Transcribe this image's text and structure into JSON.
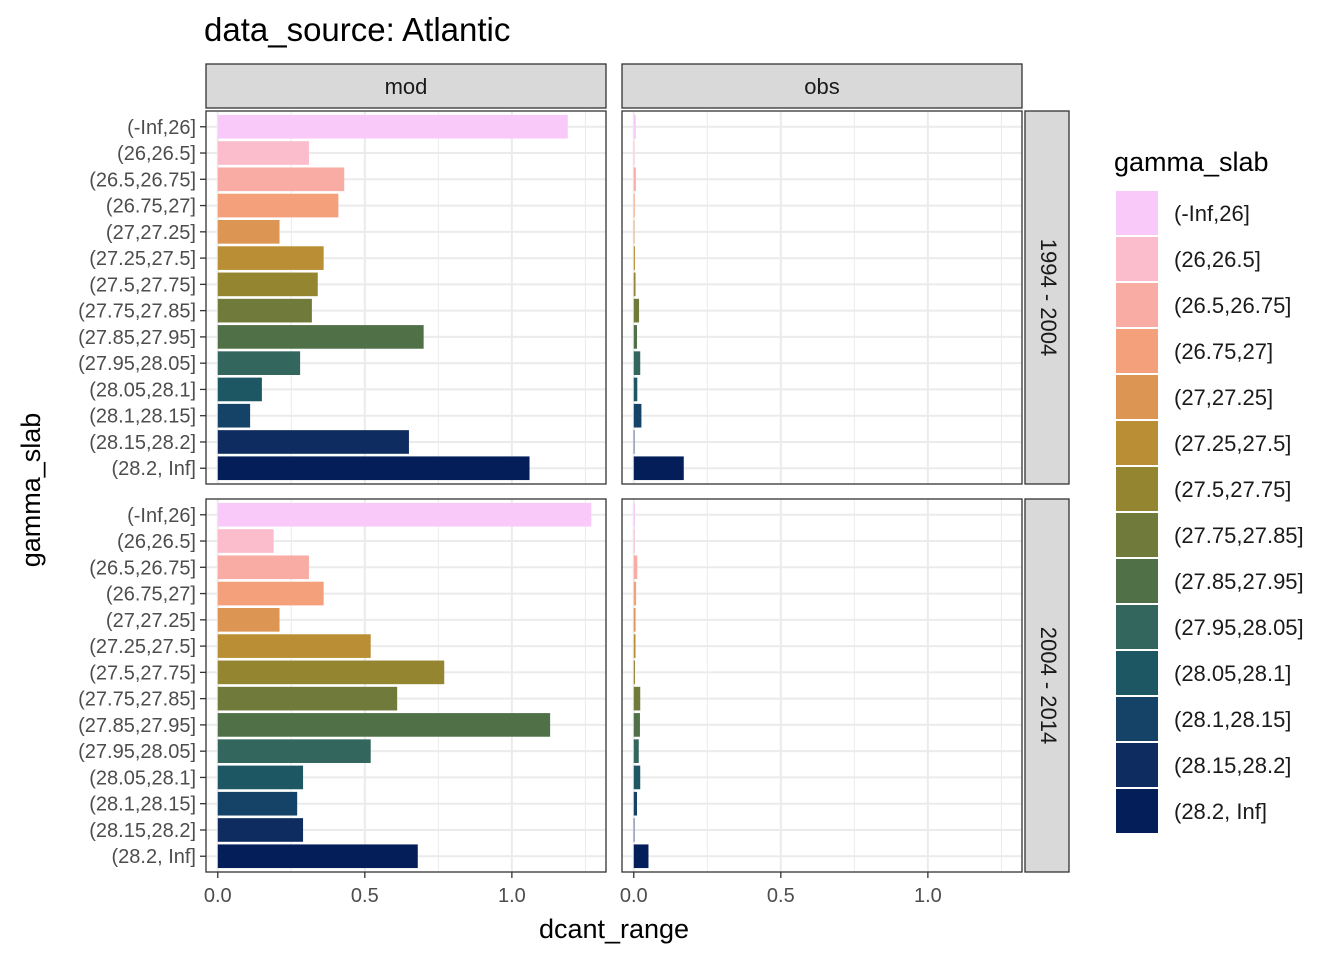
{
  "chart_data": {
    "type": "bar",
    "orientation": "horizontal",
    "title": "data_source: Atlantic",
    "xlabel": "dcant_range",
    "ylabel": "gamma_slab",
    "facet_cols": [
      "mod",
      "obs"
    ],
    "facet_rows": [
      "1994 - 2004",
      "2004 - 2014"
    ],
    "xlim": [
      -0.04,
      1.32
    ],
    "x_ticks": [
      0.0,
      0.5,
      1.0
    ],
    "x_tick_labels": [
      "0.0",
      "0.5",
      "1.0"
    ],
    "grid": true,
    "legend": {
      "title": "gamma_slab",
      "position": "right"
    },
    "categories": [
      "(-Inf,26]",
      "(26,26.5]",
      "(26.5,26.75]",
      "(26.75,27]",
      "(27,27.25]",
      "(27.25,27.5]",
      "(27.5,27.75]",
      "(27.75,27.85]",
      "(27.85,27.95]",
      "(27.95,28.05]",
      "(28.05,28.1]",
      "(28.1,28.15]",
      "(28.15,28.2]",
      "(28.2, Inf]"
    ],
    "colors": [
      "#F9C9F9",
      "#FBBCCB",
      "#F9ACA3",
      "#F3A07B",
      "#DC9553",
      "#BA8E35",
      "#948530",
      "#6F7A3B",
      "#507148",
      "#33665C",
      "#1D5764",
      "#154368",
      "#0F2C61",
      "#041E5A"
    ],
    "panels": [
      {
        "col": "mod",
        "row": "1994 - 2004",
        "values": [
          1.19,
          0.31,
          0.43,
          0.41,
          0.21,
          0.36,
          0.34,
          0.32,
          0.7,
          0.28,
          0.15,
          0.11,
          0.65,
          1.06
        ]
      },
      {
        "col": "obs",
        "row": "1994 - 2004",
        "values": [
          0.007,
          0.001,
          0.007,
          0.003,
          0.001,
          0.004,
          0.006,
          0.018,
          0.011,
          0.022,
          0.012,
          0.026,
          0.001,
          0.17
        ]
      },
      {
        "col": "mod",
        "row": "2004 - 2014",
        "values": [
          1.27,
          0.19,
          0.31,
          0.36,
          0.21,
          0.52,
          0.77,
          0.61,
          1.13,
          0.52,
          0.29,
          0.27,
          0.29,
          0.68
        ]
      },
      {
        "col": "obs",
        "row": "2004 - 2014",
        "values": [
          0.004,
          0.003,
          0.012,
          0.008,
          0.006,
          0.006,
          0.004,
          0.022,
          0.021,
          0.017,
          0.022,
          0.011,
          0.001,
          0.05
        ]
      }
    ]
  }
}
